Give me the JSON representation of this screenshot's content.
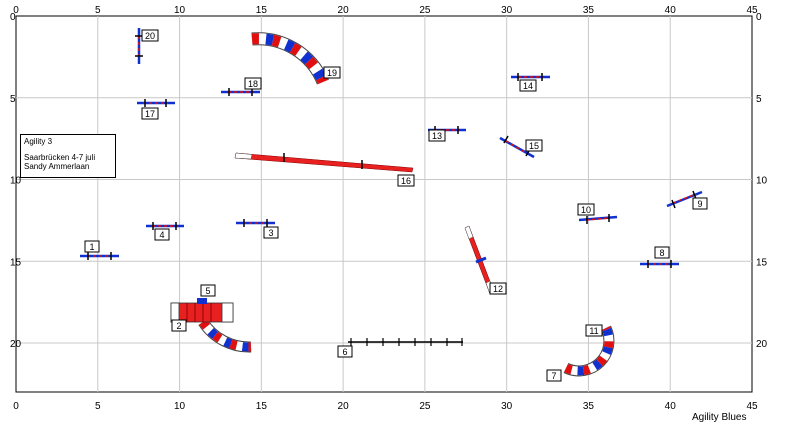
{
  "info_box": {
    "title": "Agility 3",
    "line2": "Saarbrücken 4-7 juli",
    "line3": "Sandy Ammerlaan"
  },
  "brand": "Agility Blues",
  "axis_ticks_x": [
    "0",
    "5",
    "10",
    "15",
    "20",
    "25",
    "30",
    "35",
    "40",
    "45"
  ],
  "axis_ticks_y": [
    "0",
    "5",
    "10",
    "15",
    "20"
  ],
  "colors": {
    "grid": "#c8c8c8",
    "red": "#e01010",
    "blue": "#1030d0",
    "tube_red": "#e82020"
  },
  "obstacles": [
    {
      "num": "1",
      "type": "jump",
      "x": 5.2,
      "y": 14.7
    },
    {
      "num": "2",
      "type": "tunnel"
    },
    {
      "num": "3",
      "type": "jump",
      "x": 14.5,
      "y": 12.7
    },
    {
      "num": "4",
      "type": "jump",
      "x": 9.0,
      "y": 12.9
    },
    {
      "num": "5",
      "type": "tunnel-marker"
    },
    {
      "num": "6",
      "type": "dogwalk"
    },
    {
      "num": "7",
      "type": "tunnel"
    },
    {
      "num": "8",
      "type": "jump",
      "x": 39.5,
      "y": 15.1
    },
    {
      "num": "9",
      "type": "jump",
      "x": 41.2,
      "y": 11.3
    },
    {
      "num": "10",
      "type": "jump",
      "x": 35.3,
      "y": 12.4
    },
    {
      "num": "11",
      "type": "tunnel-marker"
    },
    {
      "num": "12",
      "type": "seesaw"
    },
    {
      "num": "13",
      "type": "jump",
      "x": 26.5,
      "y": 6.9
    },
    {
      "num": "14",
      "type": "jump",
      "x": 31.0,
      "y": 3.7
    },
    {
      "num": "15",
      "type": "jump",
      "x": 30.8,
      "y": 7.8
    },
    {
      "num": "16",
      "type": "aframe"
    },
    {
      "num": "17",
      "type": "jump",
      "x": 8.5,
      "y": 5.3
    },
    {
      "num": "18",
      "type": "jump",
      "x": 13.8,
      "y": 4.6
    },
    {
      "num": "19",
      "type": "tunnel"
    },
    {
      "num": "20",
      "type": "jump",
      "x": 7.5,
      "y": 1.9
    }
  ]
}
